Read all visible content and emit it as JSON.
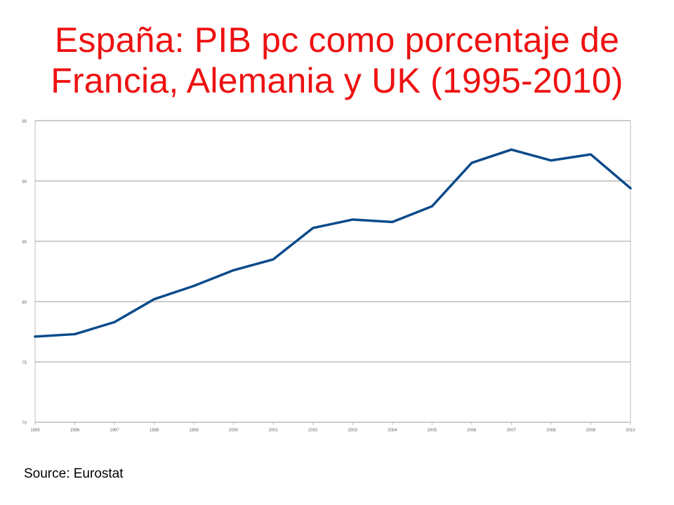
{
  "slide": {
    "title_line1": "España: PIB pc como porcentaje de",
    "title_line2": "Francia, Alemania y UK (1995-2010)",
    "source": "Source: Eurostat"
  },
  "colors": {
    "title": "#ee1111",
    "line": "#0b4a8b",
    "grid": "#9a9a9a",
    "axis_text": "#666666"
  },
  "chart_data": {
    "type": "line",
    "title": "",
    "xlabel": "",
    "ylabel": "",
    "categories": [
      "1995",
      "1996",
      "1997",
      "1998",
      "1999",
      "2000",
      "2001",
      "2002",
      "2003",
      "2004",
      "2005",
      "2006",
      "2007",
      "2008",
      "2009",
      "2010"
    ],
    "series": [
      {
        "values": [
          77.1,
          77.3,
          78.3,
          80.2,
          81.3,
          82.6,
          83.5,
          86.1,
          86.8,
          86.6,
          87.9,
          91.5,
          92.6,
          91.7,
          92.2,
          89.4
        ]
      }
    ],
    "ylim": [
      70,
      95
    ],
    "yticks": [
      70,
      75,
      80,
      85,
      90,
      95
    ],
    "grid": true,
    "legend": "none"
  }
}
